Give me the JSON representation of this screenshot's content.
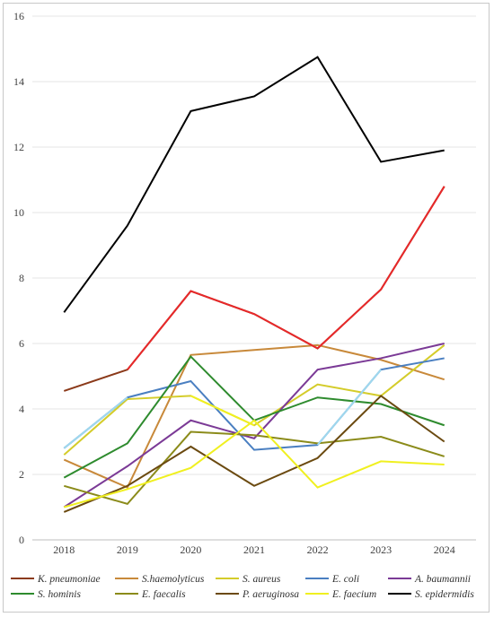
{
  "chart_data": {
    "type": "line",
    "title": "",
    "xlabel": "",
    "ylabel": "",
    "x": [
      "2018",
      "2019",
      "2020",
      "2021",
      "2022",
      "2023",
      "2024"
    ],
    "ylim": [
      0,
      16
    ],
    "yticks": [
      "0",
      "2",
      "4",
      "6",
      "8",
      "10",
      "12",
      "14",
      "16"
    ],
    "grid": "horizontal",
    "legend_position": "bottom",
    "series": [
      {
        "name": "K. pneumoniae",
        "color": "#8B3A1A",
        "values": [
          4.55,
          5.2,
          7.6,
          6.9,
          5.85,
          7.65,
          10.8
        ]
      },
      {
        "name": "S.haemolyticus",
        "color": "#C8893A",
        "values": [
          2.45,
          1.6,
          5.65,
          5.8,
          5.95,
          5.5,
          4.9
        ]
      },
      {
        "name": "S. aureus",
        "color": "#D4CC2A",
        "values": [
          2.6,
          4.3,
          4.4,
          3.5,
          4.75,
          4.4,
          5.95
        ]
      },
      {
        "name": "E. coli",
        "color": "#4A7FC1",
        "values": [
          2.8,
          4.35,
          4.85,
          2.75,
          2.9,
          5.2,
          5.55
        ]
      },
      {
        "name": "A. baumannii",
        "color": "#7B3A96",
        "values": [
          1.0,
          2.25,
          3.65,
          3.1,
          5.2,
          5.55,
          6.0
        ]
      },
      {
        "name": "S. hominis",
        "color": "#2E8B2E",
        "values": [
          1.9,
          2.95,
          5.6,
          3.65,
          4.35,
          4.15,
          3.5
        ]
      },
      {
        "name": "E. faecalis",
        "color": "#8B8B1A",
        "values": [
          1.65,
          1.1,
          3.3,
          3.2,
          2.95,
          3.15,
          2.55
        ]
      },
      {
        "name": "P. aeruginosa",
        "color": "#6B4A10",
        "values": [
          0.85,
          1.65,
          2.85,
          1.65,
          2.5,
          4.4,
          3.0
        ]
      },
      {
        "name": "E. faecium",
        "color": "#F0F020",
        "values": [
          1.0,
          1.55,
          2.2,
          3.65,
          1.6,
          2.4,
          2.3
        ]
      },
      {
        "name": "S. epidermidis",
        "color": "#000000",
        "values": [
          6.95,
          9.6,
          13.1,
          13.55,
          14.75,
          11.55,
          11.9
        ]
      }
    ],
    "segment_highlights": [
      {
        "series": "K. pneumoniae",
        "from": "2019",
        "to": "2022",
        "color": "#E8282A"
      },
      {
        "series": "K. pneumoniae",
        "from": "2022",
        "to": "2024",
        "color": "#E8282A"
      },
      {
        "series": "S. aureus",
        "from": "2020",
        "to": "2021",
        "color": "#F0F020"
      },
      {
        "series": "E. coli",
        "from": "2018",
        "to": "2019",
        "color": "#9FD8EE"
      },
      {
        "series": "E. coli",
        "from": "2022",
        "to": "2023",
        "color": "#9FD8EE"
      }
    ]
  }
}
